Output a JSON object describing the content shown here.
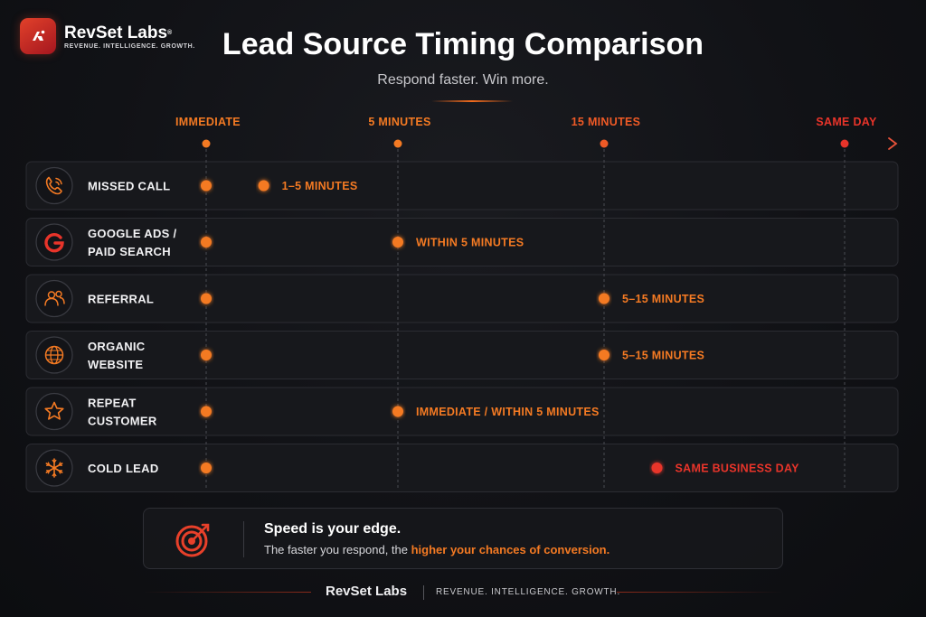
{
  "brand": {
    "name": "RevSet Labs",
    "mark": "®",
    "tagline": "REVENUE. INTELLIGENCE. GROWTH."
  },
  "header": {
    "title": "Lead Source Timing Comparison",
    "subtitle": "Respond faster. Win more."
  },
  "colors": {
    "accent": "#f47a23",
    "accent_late": "#e8342a",
    "background": "#111216"
  },
  "chart_data": {
    "type": "timeline",
    "axis": {
      "ticks": [
        {
          "label": "IMMEDIATE",
          "minutes": 0
        },
        {
          "label": "5 MINUTES",
          "minutes": 5
        },
        {
          "label": "15 MINUTES",
          "minutes": 15
        },
        {
          "label": "SAME DAY",
          "minutes": "same day"
        }
      ],
      "arrow": true,
      "grid_dashed": true
    },
    "rows": [
      {
        "category": "MISSED CALL",
        "icon": "phone-icon",
        "start": "IMMEDIATE",
        "end_minutes": 1.5,
        "label": "1–5 MINUTES",
        "color": "#f47a23"
      },
      {
        "category": "GOOGLE ADS / PAID SEARCH",
        "lines": [
          "GOOGLE ADS /",
          "PAID SEARCH"
        ],
        "icon": "google-icon",
        "start": "IMMEDIATE",
        "end_minutes": 5,
        "label": "WITHIN 5 MINUTES",
        "color": "#f47a23"
      },
      {
        "category": "REFERRAL",
        "icon": "users-icon",
        "start": "IMMEDIATE",
        "end_minutes": 15,
        "label": "5–15 MINUTES",
        "color": "#f47a23"
      },
      {
        "category": "ORGANIC WEBSITE",
        "lines": [
          "ORGANIC",
          "WEBSITE"
        ],
        "icon": "globe-icon",
        "start": "IMMEDIATE",
        "end_minutes": 15,
        "label": "5–15 MINUTES",
        "color": "#f47a23"
      },
      {
        "category": "REPEAT CUSTOMER",
        "lines": [
          "REPEAT",
          "CUSTOMER"
        ],
        "icon": "star-icon",
        "start": "IMMEDIATE",
        "end_minutes": 5,
        "label": "IMMEDIATE / WITHIN 5 MINUTES",
        "color": "#f47a23"
      },
      {
        "category": "COLD LEAD",
        "icon": "snowflake-icon",
        "start": "IMMEDIATE",
        "end_minutes": 17.2,
        "label": "SAME BUSINESS DAY",
        "color": "#e8342a"
      }
    ]
  },
  "callout": {
    "icon": "target-icon",
    "heading": "Speed is your edge.",
    "body_prefix": "The faster you respond, the ",
    "body_highlight": "higher your chances of conversion."
  },
  "footer": {
    "name": "RevSet Labs",
    "tagline": "REVENUE. INTELLIGENCE. GROWTH."
  }
}
